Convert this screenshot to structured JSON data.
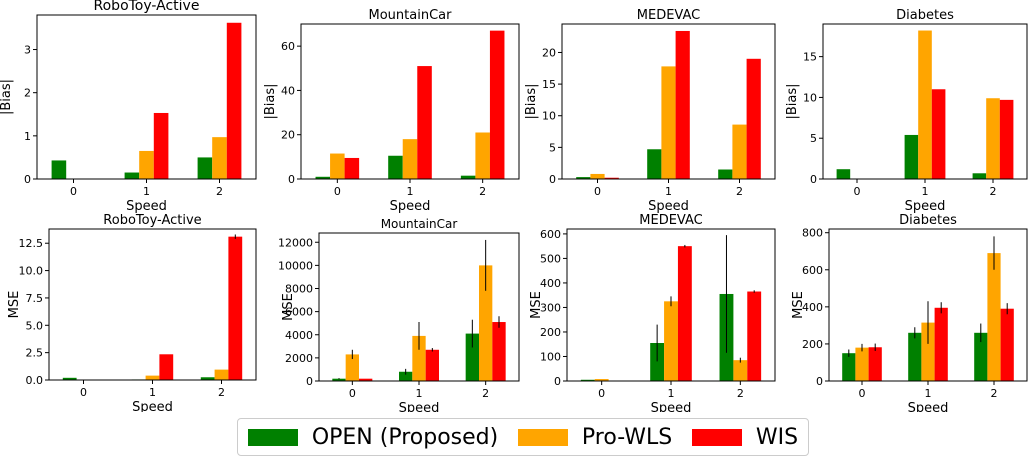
{
  "chart_data": [
    {
      "type": "bar",
      "title": "RoboToy-Active",
      "xlabel": "Speed",
      "ylabel": "|Bias|",
      "categories": [
        "0",
        "1",
        "2"
      ],
      "ylim": [
        0,
        3.8
      ],
      "yticks": [
        0,
        1,
        2,
        3
      ],
      "series": [
        {
          "name": "OPEN (Proposed)",
          "values": [
            0.43,
            0.15,
            0.5
          ]
        },
        {
          "name": "Pro-WLS",
          "values": [
            0.01,
            0.65,
            0.97
          ]
        },
        {
          "name": "WIS",
          "values": [
            0.0,
            1.53,
            3.62
          ]
        }
      ]
    },
    {
      "type": "bar",
      "title": "MountainCar",
      "xlabel": "Speed",
      "ylabel": "|Bias|",
      "categories": [
        "0",
        "1",
        "2"
      ],
      "ylim": [
        0,
        70
      ],
      "yticks": [
        0,
        20,
        40,
        60
      ],
      "series": [
        {
          "name": "OPEN (Proposed)",
          "values": [
            1.0,
            10.5,
            1.5
          ]
        },
        {
          "name": "Pro-WLS",
          "values": [
            11.5,
            18.0,
            21.0
          ]
        },
        {
          "name": "WIS",
          "values": [
            9.5,
            51.0,
            67.0
          ]
        }
      ]
    },
    {
      "type": "bar",
      "title": "MEDEVAC",
      "xlabel": "Speed",
      "ylabel": "|Bias|",
      "categories": [
        "0",
        "1",
        "2"
      ],
      "ylim": [
        0,
        24.5
      ],
      "yticks": [
        0,
        5,
        10,
        15,
        20
      ],
      "series": [
        {
          "name": "OPEN (Proposed)",
          "values": [
            0.3,
            4.7,
            1.5
          ]
        },
        {
          "name": "Pro-WLS",
          "values": [
            0.8,
            17.8,
            8.6
          ]
        },
        {
          "name": "WIS",
          "values": [
            0.2,
            23.4,
            19.0
          ]
        }
      ]
    },
    {
      "type": "bar",
      "title": "Diabetes",
      "xlabel": "Speed",
      "ylabel": "|Bias|",
      "categories": [
        "0",
        "1",
        "2"
      ],
      "ylim": [
        0,
        19
      ],
      "yticks": [
        0,
        5,
        10,
        15
      ],
      "series": [
        {
          "name": "OPEN (Proposed)",
          "values": [
            1.2,
            5.4,
            0.7
          ]
        },
        {
          "name": "Pro-WLS",
          "values": [
            0.05,
            18.2,
            9.9
          ]
        },
        {
          "name": "WIS",
          "values": [
            0.0,
            11.0,
            9.7
          ]
        }
      ]
    },
    {
      "type": "bar",
      "title": "RoboToy-Active",
      "xlabel": "Speed",
      "ylabel": "MSE",
      "categories": [
        "0",
        "1",
        "2"
      ],
      "ylim": [
        0,
        13.8
      ],
      "yticks": [
        0,
        2.5,
        5,
        7.5,
        10,
        12.5
      ],
      "ytick_labels": [
        "0.0",
        "2.5",
        "5.0",
        "7.5",
        "10.0",
        "12.5"
      ],
      "series": [
        {
          "name": "OPEN (Proposed)",
          "values": [
            0.2,
            0.05,
            0.25
          ]
        },
        {
          "name": "Pro-WLS",
          "values": [
            0.0,
            0.4,
            0.95
          ]
        },
        {
          "name": "WIS",
          "values": [
            0.0,
            2.35,
            13.1
          ]
        }
      ],
      "error_bars": [
        [
          0,
          0,
          0
        ],
        [
          0,
          0,
          0
        ],
        [
          0,
          0,
          0.2
        ]
      ]
    },
    {
      "type": "bar",
      "title": "MountainCar",
      "xlabel": "Speed",
      "ylabel": "MSE",
      "categories": [
        "0",
        "1",
        "2"
      ],
      "ylim": [
        0,
        12800
      ],
      "yticks": [
        0,
        2000,
        4000,
        6000,
        8000,
        10000,
        12000
      ],
      "series": [
        {
          "name": "OPEN (Proposed)",
          "values": [
            200,
            800,
            4100
          ]
        },
        {
          "name": "Pro-WLS",
          "values": [
            2300,
            3900,
            10000
          ]
        },
        {
          "name": "WIS",
          "values": [
            200,
            2700,
            5100
          ]
        }
      ],
      "error_bars": [
        [
          50,
          250,
          1200
        ],
        [
          400,
          1200,
          2200
        ],
        [
          0,
          150,
          500
        ]
      ]
    },
    {
      "type": "bar",
      "title": "MEDEVAC",
      "xlabel": "Speed",
      "ylabel": "MSE",
      "categories": [
        "0",
        "1",
        "2"
      ],
      "ylim": [
        0,
        620
      ],
      "yticks": [
        0,
        100,
        200,
        300,
        400,
        500,
        600
      ],
      "series": [
        {
          "name": "OPEN (Proposed)",
          "values": [
            5,
            155,
            355
          ]
        },
        {
          "name": "Pro-WLS",
          "values": [
            8,
            325,
            85
          ]
        },
        {
          "name": "WIS",
          "values": [
            0,
            550,
            365
          ]
        }
      ],
      "error_bars": [
        [
          0,
          75,
          240
        ],
        [
          0,
          20,
          10
        ],
        [
          0,
          5,
          5
        ]
      ]
    },
    {
      "type": "bar",
      "title": "Diabetes",
      "xlabel": "Speed",
      "ylabel": "MSE",
      "categories": [
        "0",
        "1",
        "2"
      ],
      "ylim": [
        0,
        820
      ],
      "yticks": [
        0,
        200,
        400,
        600,
        800
      ],
      "series": [
        {
          "name": "OPEN (Proposed)",
          "values": [
            150,
            260,
            260
          ]
        },
        {
          "name": "Pro-WLS",
          "values": [
            180,
            315,
            690
          ]
        },
        {
          "name": "WIS",
          "values": [
            182,
            395,
            390
          ]
        }
      ],
      "error_bars": [
        [
          20,
          30,
          50
        ],
        [
          20,
          115,
          90
        ],
        [
          20,
          30,
          30
        ]
      ]
    }
  ],
  "legend": {
    "items": [
      {
        "label": "OPEN (Proposed)",
        "color": "#008000"
      },
      {
        "label": "Pro-WLS",
        "color": "#FFA500"
      },
      {
        "label": "WIS",
        "color": "#FF0000"
      }
    ]
  },
  "colors": {
    "open": "#008000",
    "prowls": "#FFA500",
    "wis": "#FF0000"
  }
}
